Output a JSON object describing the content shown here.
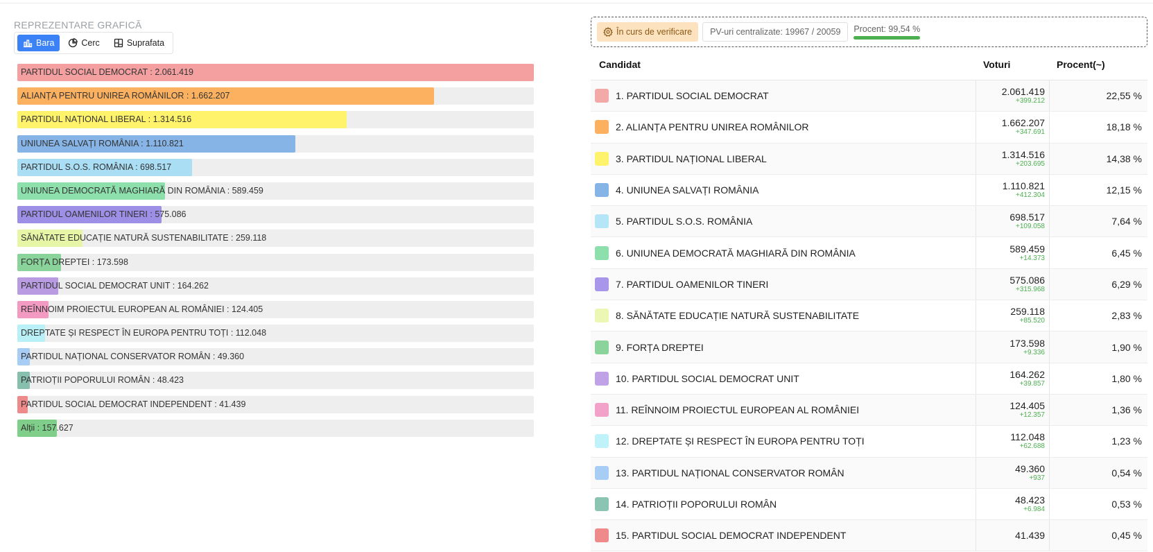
{
  "chart_section": {
    "title": "REPREZENTARE GRAFICĂ",
    "tabs": [
      {
        "label": "Bara",
        "active": true,
        "icon": "bar-chart-icon"
      },
      {
        "label": "Cerc",
        "active": false,
        "icon": "pie-chart-icon"
      },
      {
        "label": "Suprafata",
        "active": false,
        "icon": "treemap-icon"
      }
    ]
  },
  "chart_data": {
    "type": "bar",
    "orientation": "horizontal",
    "xlim": [
      0,
      2061419
    ],
    "bars": [
      {
        "label": "PARTIDUL SOCIAL DEMOCRAT : 2.061.419",
        "value": 2061419,
        "color": "#f4a0a0"
      },
      {
        "label": "ALIANȚA PENTRU UNIREA ROMÂNILOR : 1.662.207",
        "value": 1662207,
        "color": "#fbb15f"
      },
      {
        "label": "PARTIDUL NAȚIONAL LIBERAL : 1.314.516",
        "value": 1314516,
        "color": "#fff36b"
      },
      {
        "label": "UNIUNEA SALVAȚI ROMÂNIA : 1.110.821",
        "value": 1110821,
        "color": "#86b4e6"
      },
      {
        "label": "PARTIDUL S.O.S. ROMÂNIA : 698.517",
        "value": 698517,
        "color": "#a9def5"
      },
      {
        "label": "UNIUNEA DEMOCRATĂ MAGHIARĂ DIN ROMÂNIA : 589.459",
        "value": 589459,
        "color": "#8de0ac"
      },
      {
        "label": "PARTIDUL OAMENILOR TINERI : 575.086",
        "value": 575086,
        "color": "#9d8ee6"
      },
      {
        "label": "SĂNĂTATE EDUCAȚIE NATURĂ SUSTENABILITATE : 259.118",
        "value": 259118,
        "color": "#e6f5a6"
      },
      {
        "label": "FORȚA DREPTEI : 173.598",
        "value": 173598,
        "color": "#8ad39a"
      },
      {
        "label": "PARTIDUL SOCIAL DEMOCRAT UNIT : 164.262",
        "value": 164262,
        "color": "#b89be0"
      },
      {
        "label": "REÎNNOIM PROIECTUL EUROPEAN AL ROMÂNIEI : 124.405",
        "value": 124405,
        "color": "#f29ac2"
      },
      {
        "label": "DREPTATE ȘI RESPECT ÎN EUROPA PENTRU TOȚI : 112.048",
        "value": 112048,
        "color": "#b9f0f7"
      },
      {
        "label": "PARTIDUL NAȚIONAL CONSERVATOR ROMÂN : 49.360",
        "value": 49360,
        "color": "#a7cdf5"
      },
      {
        "label": "PATRIOȚII POPORULUI ROMÂN : 48.423",
        "value": 48423,
        "color": "#86bfae"
      },
      {
        "label": "PARTIDUL SOCIAL DEMOCRAT INDEPENDENT : 41.439",
        "value": 41439,
        "color": "#ee8a8a"
      },
      {
        "label": "Alții : 157.627",
        "value": 157627,
        "color": "#7fcf8a"
      }
    ]
  },
  "status": {
    "badge": "În curs de verificare",
    "pv_text": "PV-uri centralizate: 19967 / 20059",
    "procent_text": "Procent: 99,54 %",
    "procent_value": 99.54
  },
  "table": {
    "headers": {
      "candidate": "Candidat",
      "votes": "Voturi",
      "percent": "Procent(~)"
    },
    "rows": [
      {
        "name": "1. PARTIDUL SOCIAL DEMOCRAT",
        "votes": "2.061.419",
        "delta": "+399.212",
        "percent": "22,55 %",
        "color": "#f4a9a9"
      },
      {
        "name": "2. ALIANȚA PENTRU UNIREA ROMÂNILOR",
        "votes": "1.662.207",
        "delta": "+347.691",
        "percent": "18,18 %",
        "color": "#fbb15f"
      },
      {
        "name": "3. PARTIDUL NAȚIONAL LIBERAL",
        "votes": "1.314.516",
        "delta": "+203.695",
        "percent": "14,38 %",
        "color": "#fff36b"
      },
      {
        "name": "4. UNIUNEA SALVAȚI ROMÂNIA",
        "votes": "1.110.821",
        "delta": "+412.304",
        "percent": "12,15 %",
        "color": "#86b4e6"
      },
      {
        "name": "5. PARTIDUL S.O.S. ROMÂNIA",
        "votes": "698.517",
        "delta": "+109.058",
        "percent": "7,64 %",
        "color": "#b4e6f7"
      },
      {
        "name": "6. UNIUNEA DEMOCRATĂ MAGHIARĂ DIN ROMÂNIA",
        "votes": "589.459",
        "delta": "+14.373",
        "percent": "6,45 %",
        "color": "#8de0ac"
      },
      {
        "name": "7. PARTIDUL OAMENILOR TINERI",
        "votes": "575.086",
        "delta": "+315.968",
        "percent": "6,29 %",
        "color": "#a796ea"
      },
      {
        "name": "8. SĂNĂTATE EDUCAȚIE NATURĂ SUSTENABILITATE",
        "votes": "259.118",
        "delta": "+85.520",
        "percent": "2,83 %",
        "color": "#ecf7b4"
      },
      {
        "name": "9. FORȚA DREPTEI",
        "votes": "173.598",
        "delta": "+9.336",
        "percent": "1,90 %",
        "color": "#8ad39a"
      },
      {
        "name": "10. PARTIDUL SOCIAL DEMOCRAT UNIT",
        "votes": "164.262",
        "delta": "+39.857",
        "percent": "1,80 %",
        "color": "#c0a2e6"
      },
      {
        "name": "11. REÎNNOIM PROIECTUL EUROPEAN AL ROMÂNIEI",
        "votes": "124.405",
        "delta": "+12.357",
        "percent": "1,36 %",
        "color": "#f2a2c8"
      },
      {
        "name": "12. DREPTATE ȘI RESPECT ÎN EUROPA PENTRU TOȚI",
        "votes": "112.048",
        "delta": "+62.688",
        "percent": "1,23 %",
        "color": "#c0f3f9"
      },
      {
        "name": "13. PARTIDUL NAȚIONAL CONSERVATOR ROMÂN",
        "votes": "49.360",
        "delta": "+937",
        "percent": "0,54 %",
        "color": "#a7cdf5"
      },
      {
        "name": "14. PATRIOȚII POPORULUI ROMÂN",
        "votes": "48.423",
        "delta": "+6.984",
        "percent": "0,53 %",
        "color": "#8cc4b4"
      },
      {
        "name": "15. PARTIDUL SOCIAL DEMOCRAT INDEPENDENT",
        "votes": "41.439",
        "delta": "",
        "percent": "0,45 %",
        "color": "#ee8a8a"
      }
    ]
  }
}
